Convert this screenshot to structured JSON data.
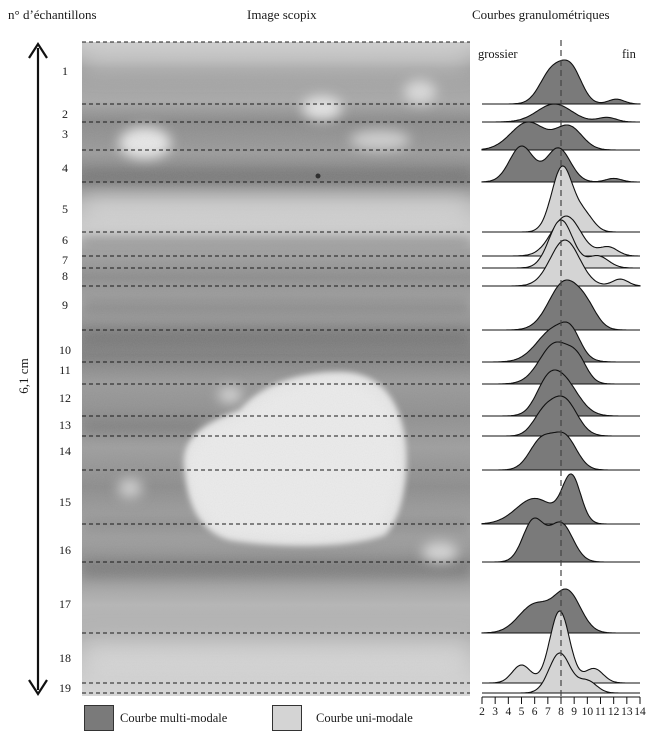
{
  "headers": {
    "samples": "n° d’échantillons",
    "image": "Image scopix",
    "curves": "Courbes granulométriques"
  },
  "length_label": "6,1 cm",
  "curve_labels": {
    "coarse": "grossier",
    "fine": "fin"
  },
  "samples": [
    "1",
    "2",
    "3",
    "4",
    "5",
    "6",
    "7",
    "8",
    "9",
    "10",
    "11",
    "12",
    "13",
    "14",
    "15",
    "16",
    "17",
    "18",
    "19"
  ],
  "axis_ticks": [
    "2",
    "3",
    "4",
    "5",
    "6",
    "7",
    "8",
    "9",
    "10",
    "11",
    "12",
    "13",
    "14"
  ],
  "legend": {
    "multi": {
      "label": "Courbe multi-modale",
      "color": "#7a7a7a"
    },
    "uni": {
      "label": "Courbe uni-modale",
      "color": "#d4d4d4"
    }
  },
  "curves": [
    {
      "sample": "1",
      "type": "multi"
    },
    {
      "sample": "2",
      "type": "multi"
    },
    {
      "sample": "3",
      "type": "multi"
    },
    {
      "sample": "4",
      "type": "multi"
    },
    {
      "sample": "5",
      "type": "uni"
    },
    {
      "sample": "6",
      "type": "uni"
    },
    {
      "sample": "7",
      "type": "uni"
    },
    {
      "sample": "8",
      "type": "uni"
    },
    {
      "sample": "9",
      "type": "multi"
    },
    {
      "sample": "10",
      "type": "multi"
    },
    {
      "sample": "11",
      "type": "multi"
    },
    {
      "sample": "12",
      "type": "multi"
    },
    {
      "sample": "13",
      "type": "multi"
    },
    {
      "sample": "14",
      "type": "multi"
    },
    {
      "sample": "15",
      "type": "multi"
    },
    {
      "sample": "16",
      "type": "multi"
    },
    {
      "sample": "17",
      "type": "multi"
    },
    {
      "sample": "18",
      "type": "uni"
    },
    {
      "sample": "19",
      "type": "uni"
    }
  ]
}
